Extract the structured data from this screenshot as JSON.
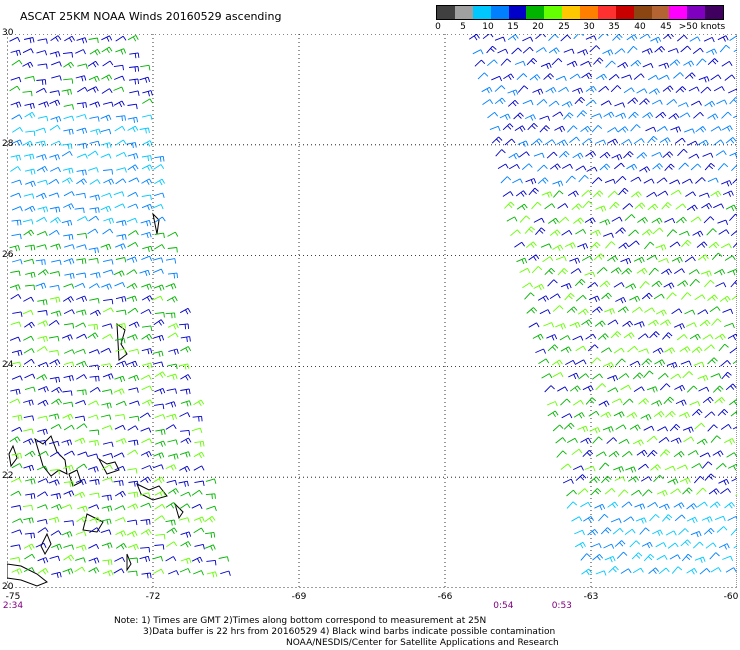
{
  "title": "ASCAT 25KM NOAA Winds 20160529 ascending",
  "legend": {
    "colors": [
      "#404040",
      "#a0a0a0",
      "#00c8ff",
      "#0080ff",
      "#0000c8",
      "#00b400",
      "#64ff00",
      "#ffc800",
      "#ff8000",
      "#ff3030",
      "#c80000",
      "#8b4513",
      "#b46432",
      "#ff00ff",
      "#8000c0",
      "#400060"
    ],
    "labels": [
      "0",
      "5",
      "10",
      "15",
      "20",
      "25",
      "30",
      "35",
      "40",
      "45",
      ">50 knots"
    ]
  },
  "map": {
    "lat_labels": [
      "30",
      "28",
      "26",
      "24",
      "22",
      "20"
    ],
    "lon_labels": [
      "-75",
      "-72",
      "-69",
      "-66",
      "-63",
      "-60"
    ],
    "lat_range": [
      20,
      30
    ],
    "lon_range": [
      -75,
      -60
    ],
    "grid": "dotted",
    "swaths": [
      {
        "name": "west",
        "lon_top": [
          -75,
          -72.3
        ],
        "lon_bottom": [
          -75,
          -70.5
        ]
      },
      {
        "name": "east",
        "lon_top": [
          -65.6,
          -60
        ],
        "lon_bottom": [
          -63.2,
          -60
        ]
      }
    ]
  },
  "times": [
    {
      "label": "2:34",
      "lon": -75
    },
    {
      "label": "0:54",
      "lon": -64.8
    },
    {
      "label": "0:53",
      "lon": -63.6
    }
  ],
  "notes": [
    "Note: 1) Times are GMT 2)Times along bottom correspond to measurement at 25N",
    "3)Data buffer is 22 hrs from 20160529 4) Black wind barbs indicate possible contamination",
    "NOAA/NESDIS/Center for Satellite Applications and Research"
  ]
}
